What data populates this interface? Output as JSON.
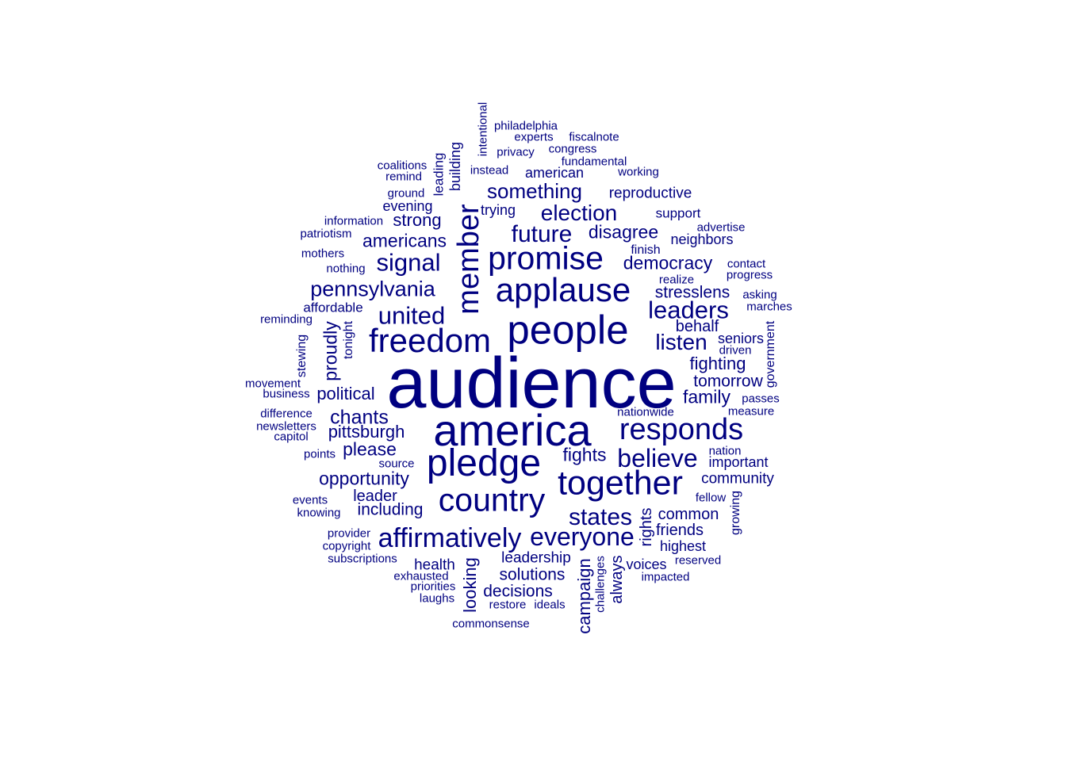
{
  "style": {
    "word_color": "#000080",
    "background": "#ffffff"
  },
  "words": [
    {
      "text": "audience",
      "weight": 100
    },
    {
      "text": "america",
      "weight": 62
    },
    {
      "text": "people",
      "weight": 57
    },
    {
      "text": "pledge",
      "weight": 53
    },
    {
      "text": "together",
      "weight": 48
    },
    {
      "text": "freedom",
      "weight": 47
    },
    {
      "text": "applause",
      "weight": 47
    },
    {
      "text": "promise",
      "weight": 45
    },
    {
      "text": "country",
      "weight": 45
    },
    {
      "text": "member",
      "weight": 42
    },
    {
      "text": "responds",
      "weight": 42
    },
    {
      "text": "affirmatively",
      "weight": 38
    },
    {
      "text": "everyone",
      "weight": 35
    },
    {
      "text": "believe",
      "weight": 35
    },
    {
      "text": "leaders",
      "weight": 34
    },
    {
      "text": "signal",
      "weight": 34
    },
    {
      "text": "united",
      "weight": 34
    },
    {
      "text": "states",
      "weight": 33
    },
    {
      "text": "future",
      "weight": 33
    },
    {
      "text": "listen",
      "weight": 31
    },
    {
      "text": "election",
      "weight": 31
    },
    {
      "text": "pennsylvania",
      "weight": 30
    },
    {
      "text": "something",
      "weight": 29
    },
    {
      "text": "chants",
      "weight": 28
    },
    {
      "text": "disagree",
      "weight": 26
    },
    {
      "text": "democracy",
      "weight": 26
    },
    {
      "text": "opportunity",
      "weight": 26
    },
    {
      "text": "americans",
      "weight": 26
    },
    {
      "text": "fights",
      "weight": 26
    },
    {
      "text": "please",
      "weight": 26
    },
    {
      "text": "family",
      "weight": 26
    },
    {
      "text": "proudly",
      "weight": 25
    },
    {
      "text": "looking",
      "weight": 24
    },
    {
      "text": "campaign",
      "weight": 24
    },
    {
      "text": "fighting",
      "weight": 24
    },
    {
      "text": "pittsburgh",
      "weight": 24
    },
    {
      "text": "political",
      "weight": 24
    },
    {
      "text": "strong",
      "weight": 24
    },
    {
      "text": "tomorrow",
      "weight": 23
    },
    {
      "text": "solutions",
      "weight": 23
    },
    {
      "text": "decisions",
      "weight": 23
    },
    {
      "text": "stresslens",
      "weight": 23
    },
    {
      "text": "including",
      "weight": 23
    },
    {
      "text": "behalf",
      "weight": 22
    },
    {
      "text": "rights",
      "weight": 22
    },
    {
      "text": "always",
      "weight": 22
    },
    {
      "text": "common",
      "weight": 22
    },
    {
      "text": "friends",
      "weight": 22
    },
    {
      "text": "leader",
      "weight": 22
    },
    {
      "text": "community",
      "weight": 21
    },
    {
      "text": "reproductive",
      "weight": 21
    },
    {
      "text": "leadership",
      "weight": 21
    },
    {
      "text": "health",
      "weight": 21
    },
    {
      "text": "voices",
      "weight": 20
    },
    {
      "text": "trying",
      "weight": 20
    },
    {
      "text": "neighbors",
      "weight": 20
    },
    {
      "text": "important",
      "weight": 20
    },
    {
      "text": "highest",
      "weight": 20
    },
    {
      "text": "seniors",
      "weight": 20
    },
    {
      "text": "evening",
      "weight": 20
    },
    {
      "text": "building",
      "weight": 20
    },
    {
      "text": "american",
      "weight": 20
    },
    {
      "text": "support",
      "weight": 19
    },
    {
      "text": "affordable",
      "weight": 19
    },
    {
      "text": "leading",
      "weight": 19
    },
    {
      "text": "tonight",
      "weight": 18
    },
    {
      "text": "finish",
      "weight": 18
    },
    {
      "text": "stewing",
      "weight": 18
    },
    {
      "text": "growing",
      "weight": 18
    },
    {
      "text": "government",
      "weight": 18
    },
    {
      "text": "challenges",
      "weight": 17
    },
    {
      "text": "intentional",
      "weight": 17
    },
    {
      "text": "philadelphia",
      "weight": 17
    },
    {
      "text": "experts",
      "weight": 17
    },
    {
      "text": "fiscalnote",
      "weight": 17
    },
    {
      "text": "congress",
      "weight": 17
    },
    {
      "text": "privacy",
      "weight": 17
    },
    {
      "text": "fundamental",
      "weight": 17
    },
    {
      "text": "coalitions",
      "weight": 17
    },
    {
      "text": "instead",
      "weight": 17
    },
    {
      "text": "working",
      "weight": 17
    },
    {
      "text": "remind",
      "weight": 17
    },
    {
      "text": "ground",
      "weight": 17
    },
    {
      "text": "information",
      "weight": 17
    },
    {
      "text": "patriotism",
      "weight": 17
    },
    {
      "text": "advertise",
      "weight": 17
    },
    {
      "text": "mothers",
      "weight": 17
    },
    {
      "text": "nothing",
      "weight": 17
    },
    {
      "text": "contact",
      "weight": 17
    },
    {
      "text": "progress",
      "weight": 17
    },
    {
      "text": "realize",
      "weight": 17
    },
    {
      "text": "asking",
      "weight": 17
    },
    {
      "text": "marches",
      "weight": 17
    },
    {
      "text": "reminding",
      "weight": 17
    },
    {
      "text": "driven",
      "weight": 17
    },
    {
      "text": "movement",
      "weight": 17
    },
    {
      "text": "business",
      "weight": 17
    },
    {
      "text": "passes",
      "weight": 17
    },
    {
      "text": "difference",
      "weight": 17
    },
    {
      "text": "nationwide",
      "weight": 17
    },
    {
      "text": "measure",
      "weight": 17
    },
    {
      "text": "newsletters",
      "weight": 17
    },
    {
      "text": "capitol",
      "weight": 17
    },
    {
      "text": "points",
      "weight": 17
    },
    {
      "text": "source",
      "weight": 17
    },
    {
      "text": "nation",
      "weight": 17
    },
    {
      "text": "events",
      "weight": 17
    },
    {
      "text": "knowing",
      "weight": 17
    },
    {
      "text": "fellow",
      "weight": 17
    },
    {
      "text": "provider",
      "weight": 17
    },
    {
      "text": "copyright",
      "weight": 17
    },
    {
      "text": "subscriptions",
      "weight": 17
    },
    {
      "text": "exhausted",
      "weight": 17
    },
    {
      "text": "priorities",
      "weight": 17
    },
    {
      "text": "laughs",
      "weight": 17
    },
    {
      "text": "reserved",
      "weight": 17
    },
    {
      "text": "impacted",
      "weight": 17
    },
    {
      "text": "restore",
      "weight": 17
    },
    {
      "text": "ideals",
      "weight": 17
    },
    {
      "text": "commonsense",
      "weight": 17
    }
  ]
}
